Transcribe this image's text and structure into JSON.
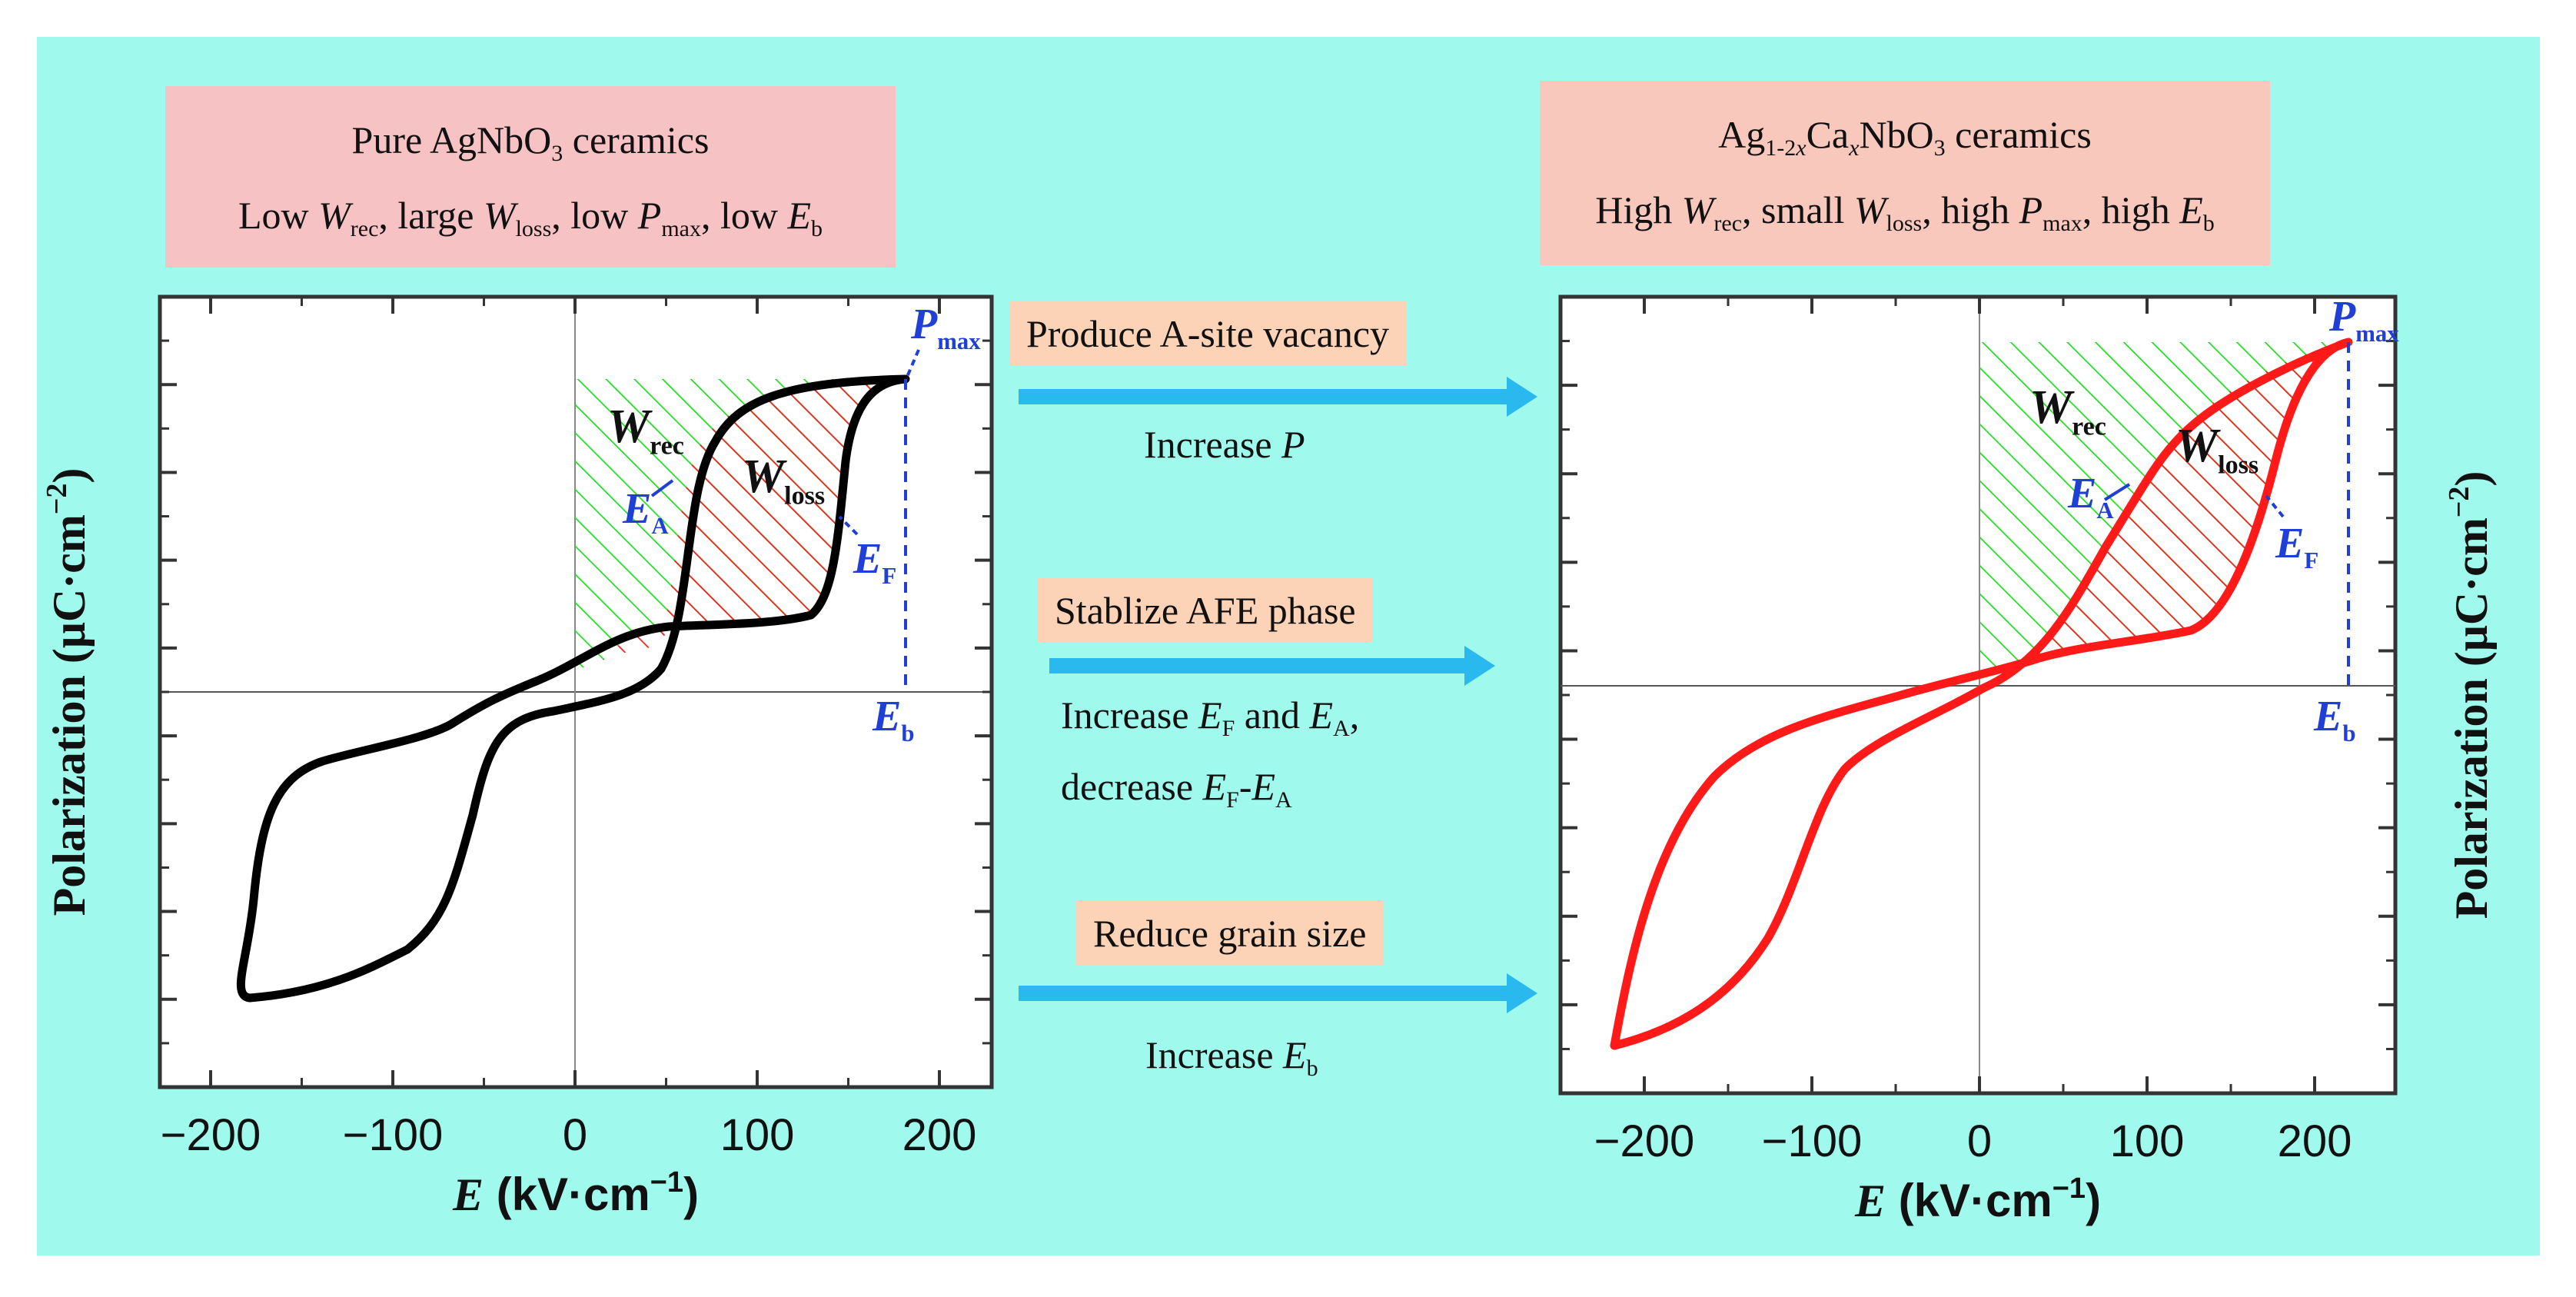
{
  "left": {
    "title_line1": "Pure AgNbO",
    "title_line1_sub": "3",
    "title_line1_tail": " ceramics",
    "title_line2": [
      {
        "t": "Low "
      },
      {
        "i": "W"
      },
      {
        "s": "rec"
      },
      {
        "t": ", large "
      },
      {
        "i": "W"
      },
      {
        "s": "loss"
      },
      {
        "t": ", low "
      },
      {
        "i": "P"
      },
      {
        "s": "max"
      },
      {
        "t": ", low "
      },
      {
        "i": "E"
      },
      {
        "s": "b"
      }
    ],
    "xticks": [
      "−200",
      "−100",
      "0",
      "100",
      "200"
    ],
    "xlabel_e": "E",
    "xlabel_unit": " (kV·cm",
    "xlabel_exp": "−1",
    "xlabel_close": ")",
    "ylabel": "Polarization (μC·cm",
    "ylabel_exp": "−2",
    "ylabel_close": ")",
    "w_rec": "W",
    "w_rec_sub": "rec",
    "w_loss": "W",
    "w_loss_sub": "loss",
    "ea": "E",
    "ea_sub": "A",
    "ef": "E",
    "ef_sub": "F",
    "pmax": "P",
    "pmax_sub": "max",
    "eb": "E",
    "eb_sub": "b",
    "loop_color": "#000000"
  },
  "right": {
    "title_line1_a": "Ag",
    "title_line1_sub1": "1-2",
    "title_line1_subx": "x",
    "title_line1_b": "Ca",
    "title_line1_sub2": "x",
    "title_line1_c": "NbO",
    "title_line1_sub3": "3",
    "title_line1_tail": "  ceramics",
    "title_line2": [
      {
        "t": "High "
      },
      {
        "i": "W"
      },
      {
        "s": "rec"
      },
      {
        "t": ", small "
      },
      {
        "i": "W"
      },
      {
        "s": "loss"
      },
      {
        "t": ", high "
      },
      {
        "i": "P"
      },
      {
        "s": "max"
      },
      {
        "t": ", high "
      },
      {
        "i": "E"
      },
      {
        "s": "b"
      }
    ],
    "xticks": [
      "−200",
      "−100",
      "0",
      "100",
      "200"
    ],
    "xlabel_e": "E",
    "xlabel_unit": " (kV·cm",
    "xlabel_exp": "−1",
    "xlabel_close": ")",
    "ylabel": "Polarization (μC·cm",
    "ylabel_exp": "−2",
    "ylabel_close": ")",
    "w_rec": "W",
    "w_rec_sub": "rec",
    "w_loss": "W",
    "w_loss_sub": "loss",
    "ea": "E",
    "ea_sub": "A",
    "ef": "E",
    "ef_sub": "F",
    "pmax": "P",
    "pmax_sub": "max",
    "eb": "E",
    "eb_sub": "b",
    "loop_color": "#ff1a1a"
  },
  "middle": {
    "step1_label": "Produce A-site vacancy",
    "step1_effect": "Increase ",
    "step1_effect_var": "P",
    "step2_label": "Stablize AFE phase",
    "step2_effect_a": "Increase ",
    "step2_effect_b": " and ",
    "step2_effect_c": ",",
    "step2_effect_d": "decrease ",
    "step2_effect_e": "-",
    "step3_label": "Reduce grain size",
    "step3_effect": "Increase ",
    "step3_effect_var": "E",
    "step3_effect_sub": "b"
  },
  "colors": {
    "background": "#9ff9ec",
    "arrow": "#29b9ef",
    "blue_annotation": "#1f3fd6",
    "green_hatch": "#22dd22",
    "red_hatch": "#ee2222"
  }
}
